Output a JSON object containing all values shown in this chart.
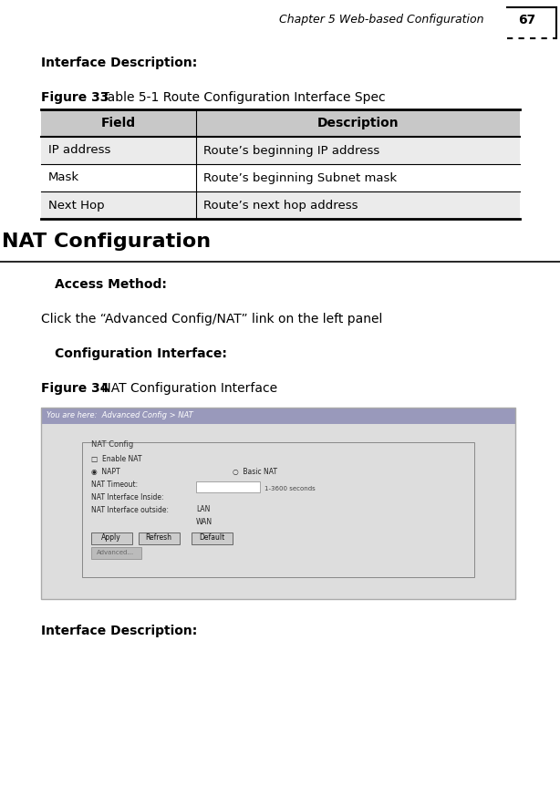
{
  "header_text": "Chapter 5 Web-based Configuration",
  "page_num": "67",
  "section1_label": "Interface Description:",
  "figure33_bold": "Figure 33",
  "figure33_rest": " Table 5-1 Route Configuration Interface Spec",
  "table_headers": [
    "Field",
    "Description"
  ],
  "table_rows": [
    [
      "IP address",
      "Route’s beginning IP address"
    ],
    [
      "Mask",
      "Route’s beginning Subnet mask"
    ],
    [
      "Next Hop",
      "Route’s next hop address"
    ]
  ],
  "header_bg": "#c8c8c8",
  "row_bg_alt": "#ebebeb",
  "row_bg_white": "#ffffff",
  "nat_section_title": "NAT Configuration",
  "access_method_bold": "Access Method:",
  "access_method_text": "Click the “Advanced Config/NAT” link on the left panel",
  "config_interface_bold": "Configuration Interface:",
  "figure34_bold": "Figure 34",
  "figure34_rest": " NAT Configuration Interface",
  "nat_img_header_bg": "#9999bb",
  "nat_img_header_text": "You are here:  Advanced Config > NAT",
  "nat_img_body_bg": "#dddddd",
  "nat_config_label": "NAT Config",
  "nat_buttons": [
    "Apply",
    "Refresh",
    "Default"
  ],
  "nat_button2": "Advanced...",
  "interface_desc_bottom_bold": "Interface Description:",
  "bg_color": "#ffffff",
  "text_color": "#000000"
}
